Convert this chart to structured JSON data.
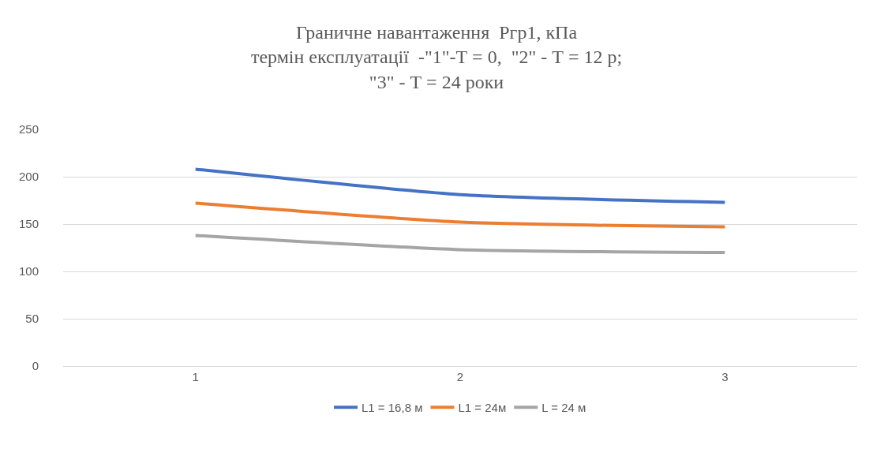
{
  "chart_data": {
    "type": "line",
    "title": "Граничне навантаження  Ргр1, кПа\nтермін експлуатації  -\"1\"-Т = 0,  \"2\" - Т = 12 р;\n\"3\" - Т = 24 роки",
    "categories": [
      "1",
      "2",
      "3"
    ],
    "series": [
      {
        "name": "L1 = 16,8 м",
        "color": "#4472c4",
        "values": [
          208,
          181,
          173
        ]
      },
      {
        "name": "L1 = 24м",
        "color": "#ed7d31",
        "values": [
          172,
          152,
          147
        ]
      },
      {
        "name": "L = 24 м",
        "color": "#a5a5a5",
        "values": [
          138,
          123,
          120
        ]
      }
    ],
    "ylim": [
      0,
      250
    ],
    "yticks": [
      0,
      50,
      100,
      150,
      200,
      250
    ],
    "grid": "y",
    "legend": "bottom",
    "marker": "none",
    "line_style": "solid"
  }
}
